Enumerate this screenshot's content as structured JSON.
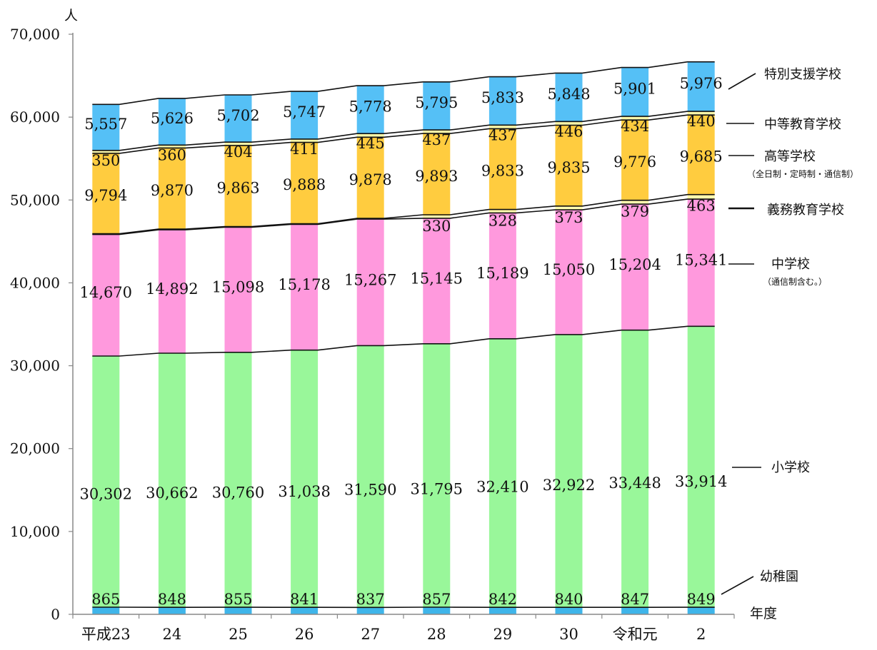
{
  "chart_data": {
    "type": "bar",
    "stacked": true,
    "y_unit": "人",
    "x_unit": "年度",
    "ylim": [
      0,
      70000
    ],
    "yticks": [
      "0",
      "10,000",
      "20,000",
      "30,000",
      "40,000",
      "50,000",
      "60,000",
      "70,000"
    ],
    "grid": false,
    "categories": [
      "平成23",
      "24",
      "25",
      "26",
      "27",
      "28",
      "29",
      "30",
      "令和元",
      "2"
    ],
    "series": [
      {
        "name": "幼稚園",
        "color": "#3fb5ea",
        "values": [
          865,
          848,
          855,
          841,
          837,
          857,
          842,
          840,
          847,
          849
        ],
        "labels": [
          "865",
          "848",
          "855",
          "841",
          "837",
          "857",
          "842",
          "840",
          "847",
          "849"
        ]
      },
      {
        "name": "小学校",
        "color": "#99f79a",
        "values": [
          30302,
          30662,
          30760,
          31038,
          31590,
          31795,
          32410,
          32922,
          33448,
          33914
        ],
        "labels": [
          "30,302",
          "30,662",
          "30,760",
          "31,038",
          "31,590",
          "31,795",
          "32,410",
          "32,922",
          "33,448",
          "33,914"
        ]
      },
      {
        "name": "中学校",
        "note": "（通信制含む。）",
        "color": "#ff99dd",
        "values": [
          14670,
          14892,
          15098,
          15178,
          15267,
          15145,
          15189,
          15050,
          15204,
          15341
        ],
        "labels": [
          "14,670",
          "14,892",
          "15,098",
          "15,178",
          "15,267",
          "15,145",
          "15,189",
          "15,050",
          "15,204",
          "15,341"
        ]
      },
      {
        "name": "義務教育学校",
        "color": "#fffbb0",
        "values": [
          0,
          0,
          0,
          0,
          0,
          330,
          328,
          373,
          379,
          463
        ],
        "labels": [
          "",
          "",
          "",
          "",
          "",
          "330",
          "328",
          "373",
          "379",
          "463"
        ]
      },
      {
        "name": "高等学校",
        "note": "（全日制・定時制・通信制）",
        "color": "#ffcc3f",
        "values": [
          9794,
          9870,
          9863,
          9888,
          9878,
          9893,
          9833,
          9835,
          9776,
          9685
        ],
        "labels": [
          "9,794",
          "9,870",
          "9,863",
          "9,888",
          "9,878",
          "9,893",
          "9,833",
          "9,835",
          "9,776",
          "9,685"
        ]
      },
      {
        "name": "中等教育学校",
        "color": "#f8f5a8",
        "values": [
          350,
          360,
          404,
          411,
          445,
          437,
          437,
          446,
          434,
          440
        ],
        "labels": [
          "350",
          "360",
          "404",
          "411",
          "445",
          "437",
          "437",
          "446",
          "434",
          "440"
        ]
      },
      {
        "name": "特別支援学校",
        "color": "#55c0f6",
        "values": [
          5557,
          5626,
          5702,
          5747,
          5778,
          5795,
          5833,
          5848,
          5901,
          5976
        ],
        "labels": [
          "5,557",
          "5,626",
          "5,702",
          "5,747",
          "5,778",
          "5,795",
          "5,833",
          "5,848",
          "5,901",
          "5,976"
        ]
      }
    ]
  }
}
